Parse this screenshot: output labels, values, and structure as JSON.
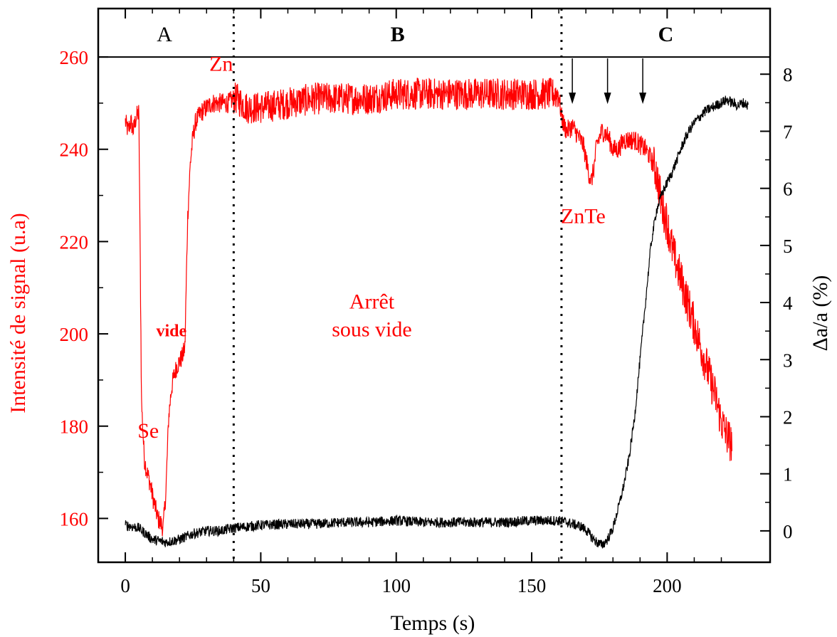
{
  "chart_data": {
    "type": "line",
    "xlabel": "Temps (s)",
    "ylabel_left": "Intensité de signal (u.a)",
    "ylabel_right": "Δa/a (%)",
    "xlim": [
      -10,
      238
    ],
    "ylim_left": [
      150.5,
      270.5
    ],
    "ylim_right": [
      -0.55,
      9.15
    ],
    "x_ticks": [
      0,
      50,
      100,
      150,
      200
    ],
    "y_left_ticks": [
      160,
      180,
      200,
      220,
      240,
      260
    ],
    "y_right_ticks": [
      0,
      1,
      2,
      3,
      4,
      5,
      6,
      7,
      8
    ],
    "regions": [
      {
        "label": "A",
        "bold": false
      },
      {
        "label": "B",
        "bold": true
      },
      {
        "label": "C",
        "bold": true
      }
    ],
    "dividers_x": [
      40,
      161
    ],
    "band_top_value": 260,
    "annotations": [
      {
        "text": "Zn",
        "x": 31,
        "y": 257
      },
      {
        "text": "vide",
        "x": 17,
        "y": 199.5,
        "bold": true
      },
      {
        "text": "Se",
        "x": 4.5,
        "y": 177.5
      },
      {
        "text": "ZnTe",
        "x": 169,
        "y": 224
      },
      {
        "text": "Arrêt",
        "x": 91,
        "y": 205.5
      },
      {
        "text": "sous vide",
        "x": 91,
        "y": 199.5
      }
    ],
    "arrows_x": [
      165,
      178,
      191
    ],
    "series": [
      {
        "axis": "left",
        "color": "#ff0000",
        "x": [
          0,
          1,
          2,
          3,
          4,
          5,
          6,
          7,
          8,
          9,
          10,
          12,
          14,
          15,
          16,
          17,
          18,
          19,
          20,
          21,
          22,
          23,
          24,
          25,
          26,
          28,
          30,
          32,
          35,
          38,
          40,
          41,
          45,
          50,
          60,
          70,
          80,
          90,
          100,
          110,
          120,
          130,
          140,
          150,
          155,
          160,
          161,
          162,
          163,
          165,
          167,
          169,
          170,
          171,
          172,
          173,
          174,
          176,
          178,
          180,
          182,
          184,
          186,
          188,
          190,
          192,
          194,
          196,
          198,
          200,
          202,
          204,
          206,
          208,
          210,
          212,
          214,
          216,
          218,
          220,
          222,
          224
        ],
        "y": [
          246,
          244,
          246,
          244,
          247,
          248,
          185,
          173,
          170,
          168,
          165,
          160,
          158,
          166,
          182,
          188,
          191,
          193,
          194,
          195,
          197,
          225,
          237,
          243,
          246,
          248,
          249,
          250,
          250,
          250,
          251,
          251,
          249,
          249,
          250,
          251,
          251,
          251,
          252,
          252,
          252,
          252,
          252,
          252,
          252,
          252,
          247,
          245,
          244,
          245,
          243,
          241,
          238,
          235,
          233,
          236,
          241,
          244,
          243,
          240,
          240,
          242,
          242,
          242,
          241,
          240,
          238,
          235,
          228,
          224,
          218,
          214,
          210,
          206,
          202,
          198,
          194,
          190,
          186,
          181,
          178,
          176
        ]
      },
      {
        "axis": "right",
        "color": "#000000",
        "x": [
          0,
          5,
          10,
          15,
          20,
          25,
          30,
          35,
          40,
          50,
          60,
          70,
          80,
          90,
          100,
          110,
          120,
          130,
          140,
          150,
          155,
          160,
          163,
          165,
          168,
          170,
          172,
          174,
          176,
          178,
          180,
          182,
          184,
          186,
          188,
          190,
          192,
          194,
          196,
          198,
          200,
          202,
          204,
          206,
          208,
          210,
          212,
          214,
          216,
          218,
          220,
          222,
          224,
          226,
          228,
          230
        ],
        "y": [
          0.1,
          0.05,
          -0.15,
          -0.2,
          -0.15,
          -0.05,
          0.0,
          0.0,
          0.05,
          0.1,
          0.12,
          0.12,
          0.15,
          0.15,
          0.18,
          0.15,
          0.15,
          0.15,
          0.15,
          0.18,
          0.18,
          0.18,
          0.15,
          0.12,
          0.08,
          0.02,
          -0.1,
          -0.2,
          -0.25,
          -0.15,
          0.05,
          0.4,
          0.8,
          1.3,
          2.0,
          3.0,
          4.0,
          5.0,
          5.6,
          5.9,
          6.1,
          6.3,
          6.55,
          6.8,
          7.0,
          7.15,
          7.25,
          7.35,
          7.4,
          7.45,
          7.5,
          7.55,
          7.5,
          7.45,
          7.5,
          7.45
        ]
      }
    ]
  }
}
